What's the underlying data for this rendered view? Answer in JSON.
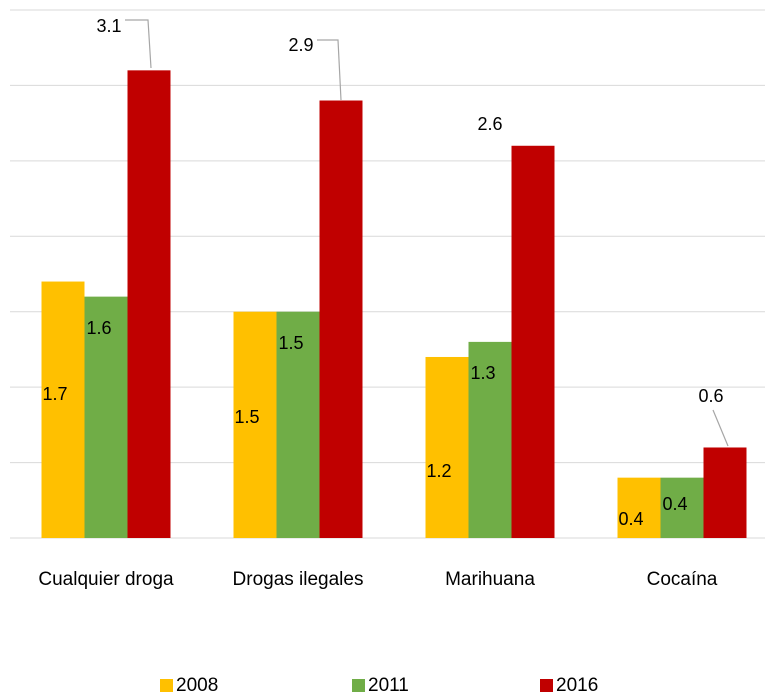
{
  "chart_data": {
    "type": "bar",
    "categories": [
      "Cualquier droga",
      "Drogas ilegales",
      "Marihuana",
      "Cocaína"
    ],
    "series": [
      {
        "name": "2008",
        "color": "#ffc000",
        "values": [
          1.7,
          1.5,
          1.2,
          0.4
        ]
      },
      {
        "name": "2011",
        "color": "#70ad47",
        "values": [
          1.6,
          1.5,
          1.3,
          0.4
        ]
      },
      {
        "name": "2016",
        "color": "#c00000",
        "values": [
          3.1,
          2.9,
          2.6,
          0.6
        ]
      }
    ],
    "ylim": [
      0,
      3.5
    ],
    "yticks": [
      0,
      0.5,
      1,
      1.5,
      2,
      2.5,
      3,
      3.5
    ],
    "grid": true,
    "legend": "bottom"
  }
}
